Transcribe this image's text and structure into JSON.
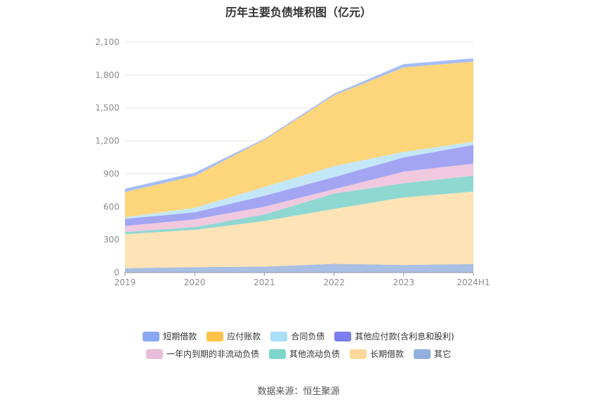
{
  "chart_data": {
    "type": "area",
    "stacked": true,
    "title": "历年主要负债堆积图（亿元）",
    "categories": [
      "2019",
      "2020",
      "2021",
      "2022",
      "2023",
      "2024H1"
    ],
    "ylim": [
      0,
      2100
    ],
    "yticks": [
      0,
      300,
      600,
      900,
      1200,
      1500,
      1800,
      2100
    ],
    "ytick_labels": [
      "0",
      "300",
      "600",
      "900",
      "1,200",
      "1,500",
      "1,800",
      "2,100"
    ],
    "grid": true,
    "legend_position": "bottom",
    "series": [
      {
        "name": "其它",
        "color": "#a9bfe3",
        "values": [
          40,
          50,
          55,
          80,
          70,
          78
        ]
      },
      {
        "name": "长期借款",
        "color": "#fde3b5",
        "values": [
          310,
          340,
          415,
          500,
          615,
          660
        ]
      },
      {
        "name": "其他流动负债",
        "color": "#8fd8d2",
        "values": [
          20,
          25,
          60,
          140,
          130,
          145
        ]
      },
      {
        "name": "一年内到期的非流动负债",
        "color": "#f0c9de",
        "values": [
          55,
          70,
          70,
          40,
          105,
          110
        ]
      },
      {
        "name": "其他应付款(含利息和股利)",
        "color": "#a3a5f3",
        "values": [
          65,
          65,
          100,
          110,
          130,
          170
        ]
      },
      {
        "name": "合同负债",
        "color": "#c3e7f8",
        "values": [
          15,
          40,
          80,
          100,
          50,
          30
        ]
      },
      {
        "name": "应付账款",
        "color": "#fdd57b",
        "values": [
          230,
          290,
          430,
          645,
          770,
          730
        ]
      },
      {
        "name": "短期借款",
        "color": "#a5bdf7",
        "values": [
          30,
          30,
          10,
          15,
          30,
          30
        ]
      }
    ]
  },
  "legend_rows": [
    [
      {
        "label": "短期借款",
        "color": "#8aa9f4"
      },
      {
        "label": "应付账款",
        "color": "#fcc24a"
      },
      {
        "label": "合同负债",
        "color": "#a9e0f7"
      },
      {
        "label": "其他应付款(含利息和股利)",
        "color": "#7b7ef0"
      }
    ],
    [
      {
        "label": "一年内到期的非流动负债",
        "color": "#e8bddb"
      },
      {
        "label": "其他流动负债",
        "color": "#7dd4cd"
      },
      {
        "label": "长期借款",
        "color": "#fdd89a"
      },
      {
        "label": "其它",
        "color": "#92b0dd"
      }
    ]
  ],
  "source": "数据来源：恒生聚源"
}
